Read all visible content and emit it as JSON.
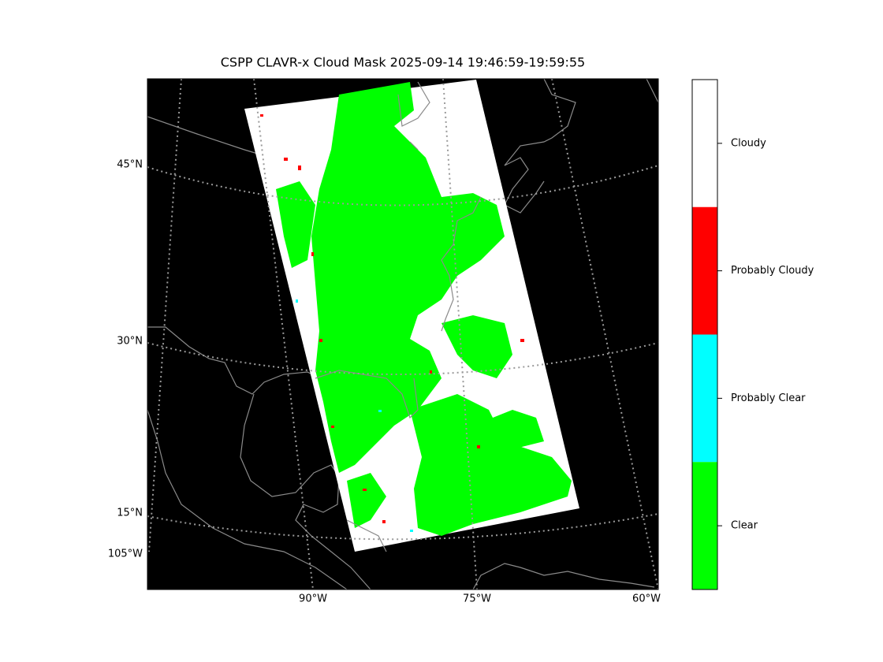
{
  "title": "CSPP CLAVR-x Cloud Mask 2025-09-14 19:46:59-19:59:55",
  "latitude_labels": [
    "45°N",
    "30°N",
    "15°N",
    "105°W"
  ],
  "longitude_labels": [
    "90°W",
    "75°W",
    "60°W"
  ],
  "colorbar": [
    {
      "label": "Cloudy",
      "color": "#ffffff"
    },
    {
      "label": "Probably Cloudy",
      "color": "#ff0000"
    },
    {
      "label": "Probably Clear",
      "color": "#00ffff"
    },
    {
      "label": "Clear",
      "color": "#00ff00"
    }
  ]
}
